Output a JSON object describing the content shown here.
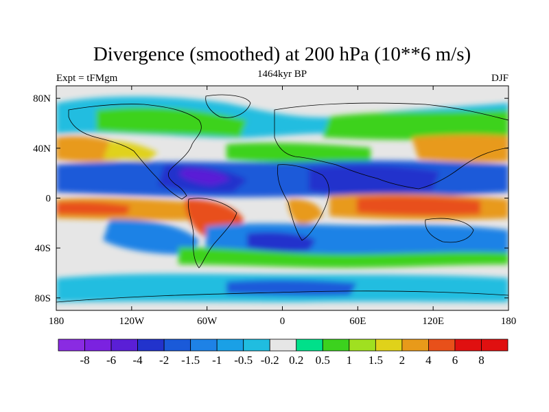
{
  "chart_data": {
    "type": "heatmap",
    "title": "Divergence (smoothed) at 200 hPa (10**6 m/s)",
    "left_label": "Expt = tFMgm",
    "center_label": "1464kyr BP",
    "right_label": "DJF",
    "x_ticks": [
      "180",
      "120W",
      "60W",
      "0",
      "60E",
      "120E",
      "180"
    ],
    "x_tick_values": [
      -180,
      -120,
      -60,
      0,
      60,
      120,
      180
    ],
    "y_ticks": [
      "80N",
      "40N",
      "0",
      "40S",
      "80S"
    ],
    "y_tick_values": [
      80,
      40,
      0,
      -40,
      -80
    ],
    "xlim": [
      -180,
      180
    ],
    "ylim": [
      -90,
      90
    ],
    "colorbar_labels": [
      "-8",
      "-6",
      "-4",
      "-2",
      "-1.5",
      "-1",
      "-0.5",
      "-0.2",
      "0.2",
      "0.5",
      "1",
      "1.5",
      "2",
      "4",
      "6",
      "8"
    ],
    "colorbar_levels": [
      -8,
      -6,
      -4,
      -2,
      -1.5,
      -1,
      -0.5,
      -0.2,
      0.2,
      0.5,
      1,
      1.5,
      2,
      4,
      6,
      8
    ],
    "colorbar_colors": [
      "#8a2be2",
      "#7b22e0",
      "#5a1fd6",
      "#2233cc",
      "#1a5ad9",
      "#1e82e6",
      "#1aa0e6",
      "#20bde0",
      "#e6e6e6",
      "#00e08a",
      "#3cd21e",
      "#a0e020",
      "#e0d21a",
      "#e89a1a",
      "#e8501a",
      "#e01010"
    ],
    "land_color": "#000000",
    "background_near_zero": "#e6e6e6"
  }
}
